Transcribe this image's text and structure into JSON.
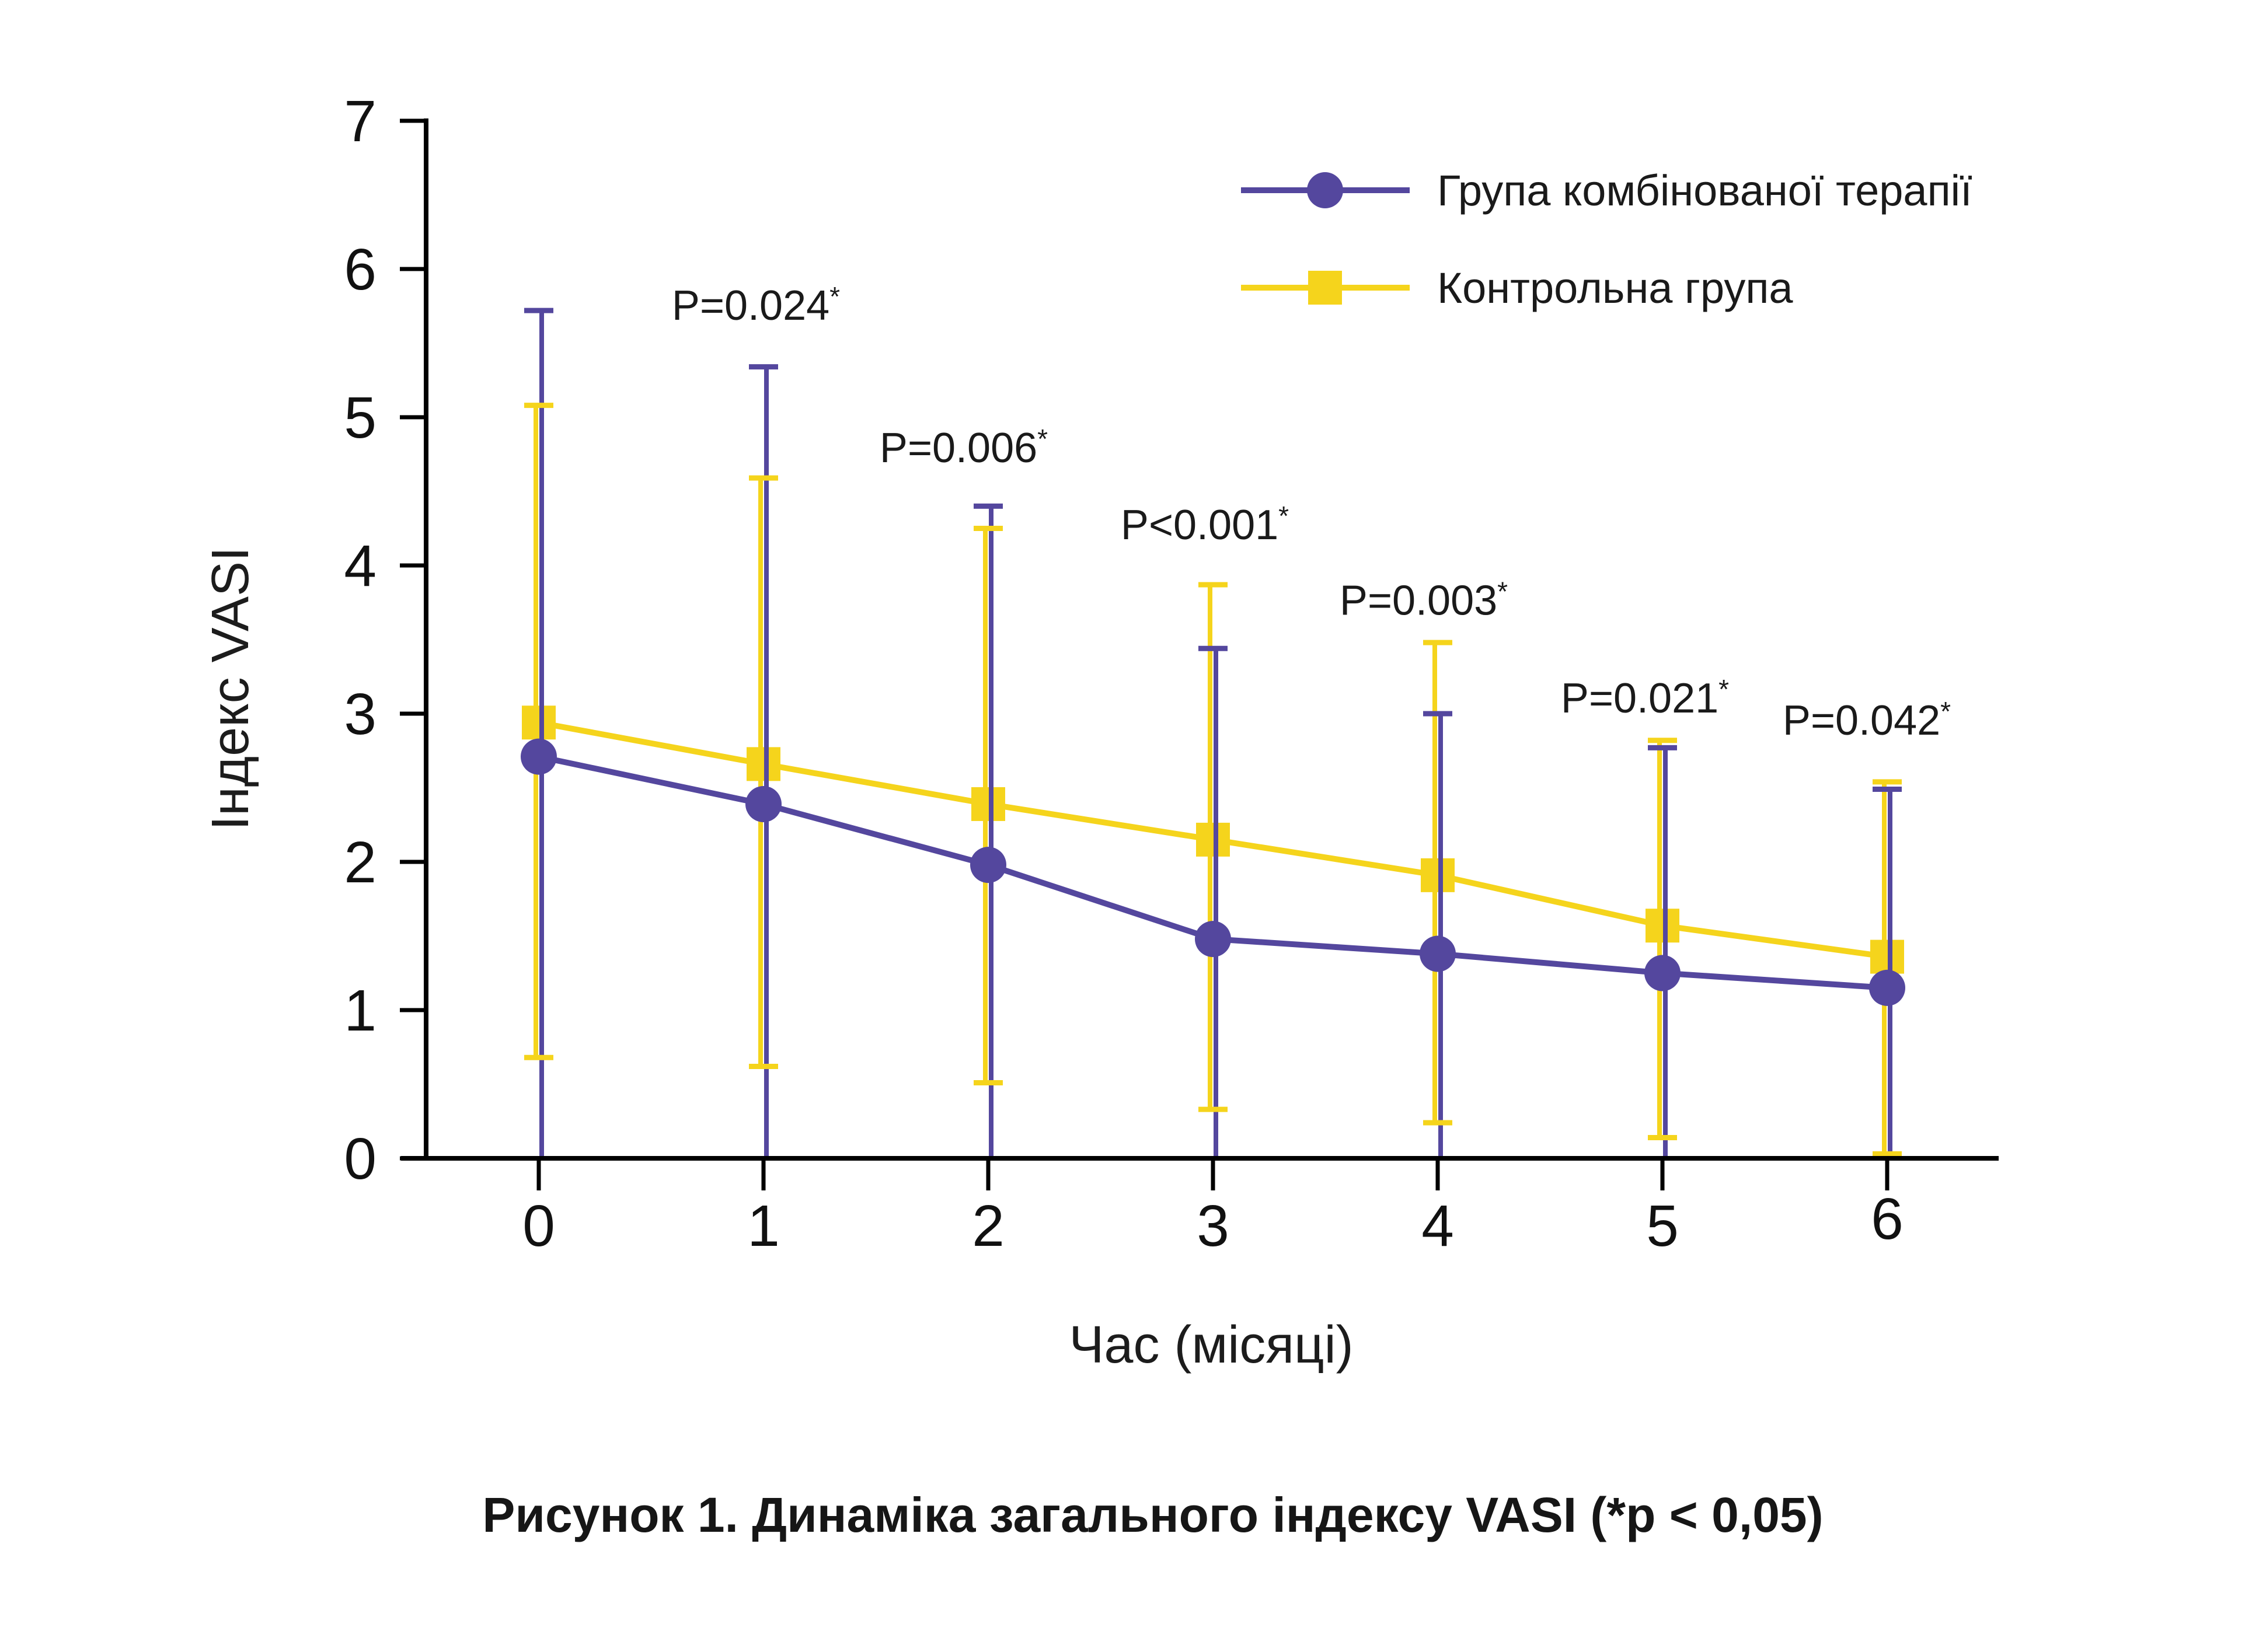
{
  "chart_data": {
    "type": "line",
    "title": "Рисунок 1. Динаміка загального індексу VASI (*p < 0,05)",
    "xlabel": "Час (місяці)",
    "ylabel": "Індекс VASI",
    "x": [
      0,
      1,
      2,
      3,
      4,
      5,
      6
    ],
    "x_ticks": [
      "0",
      "1",
      "2",
      "3",
      "4",
      "5",
      "6"
    ],
    "y_ticks": [
      "0",
      "1",
      "2",
      "3",
      "4",
      "5",
      "6",
      "7"
    ],
    "ylim": [
      0,
      7
    ],
    "grid": false,
    "legend_position": "top-right",
    "colors": {
      "combined": "#54479E",
      "control": "#F5D41C",
      "axis": "#000000",
      "text": "#161616"
    },
    "series": [
      {
        "name": "Група комбінованої терапії",
        "marker": "circle",
        "color": "#54479E",
        "values": [
          2.71,
          2.39,
          1.98,
          1.48,
          1.38,
          1.25,
          1.15
        ],
        "error_upper": [
          5.72,
          5.34,
          4.4,
          3.44,
          3.0,
          2.77,
          2.49
        ],
        "error_lower": [
          0,
          0,
          0,
          0,
          0,
          0,
          0
        ]
      },
      {
        "name": "Контрольна група",
        "marker": "square",
        "color": "#F5D41C",
        "values": [
          2.94,
          2.66,
          2.39,
          2.15,
          1.91,
          1.57,
          1.36
        ],
        "error_upper": [
          5.08,
          4.59,
          4.25,
          3.87,
          3.48,
          2.82,
          2.54
        ],
        "error_lower": [
          0.68,
          0.62,
          0.51,
          0.33,
          0.24,
          0.14,
          0.03
        ]
      }
    ],
    "annotations": [
      {
        "label": "P=0.024",
        "sup": "*",
        "x": 1,
        "y": 5.76,
        "dx": -13
      },
      {
        "label": "P=0.006",
        "sup": "*",
        "x": 2,
        "y": 4.8,
        "dx": -42
      },
      {
        "label": "P<0.001",
        "sup": "*",
        "x": 3,
        "y": 4.28,
        "dx": -14
      },
      {
        "label": "P=0.003",
        "sup": "*",
        "x": 4,
        "y": 3.77,
        "dx": -24
      },
      {
        "label": "P=0.021",
        "sup": "*",
        "x": 5,
        "y": 3.11,
        "dx": -30
      },
      {
        "label": "P=0.042",
        "sup": "*",
        "x": 6,
        "y": 2.96,
        "dx": -35
      }
    ]
  }
}
